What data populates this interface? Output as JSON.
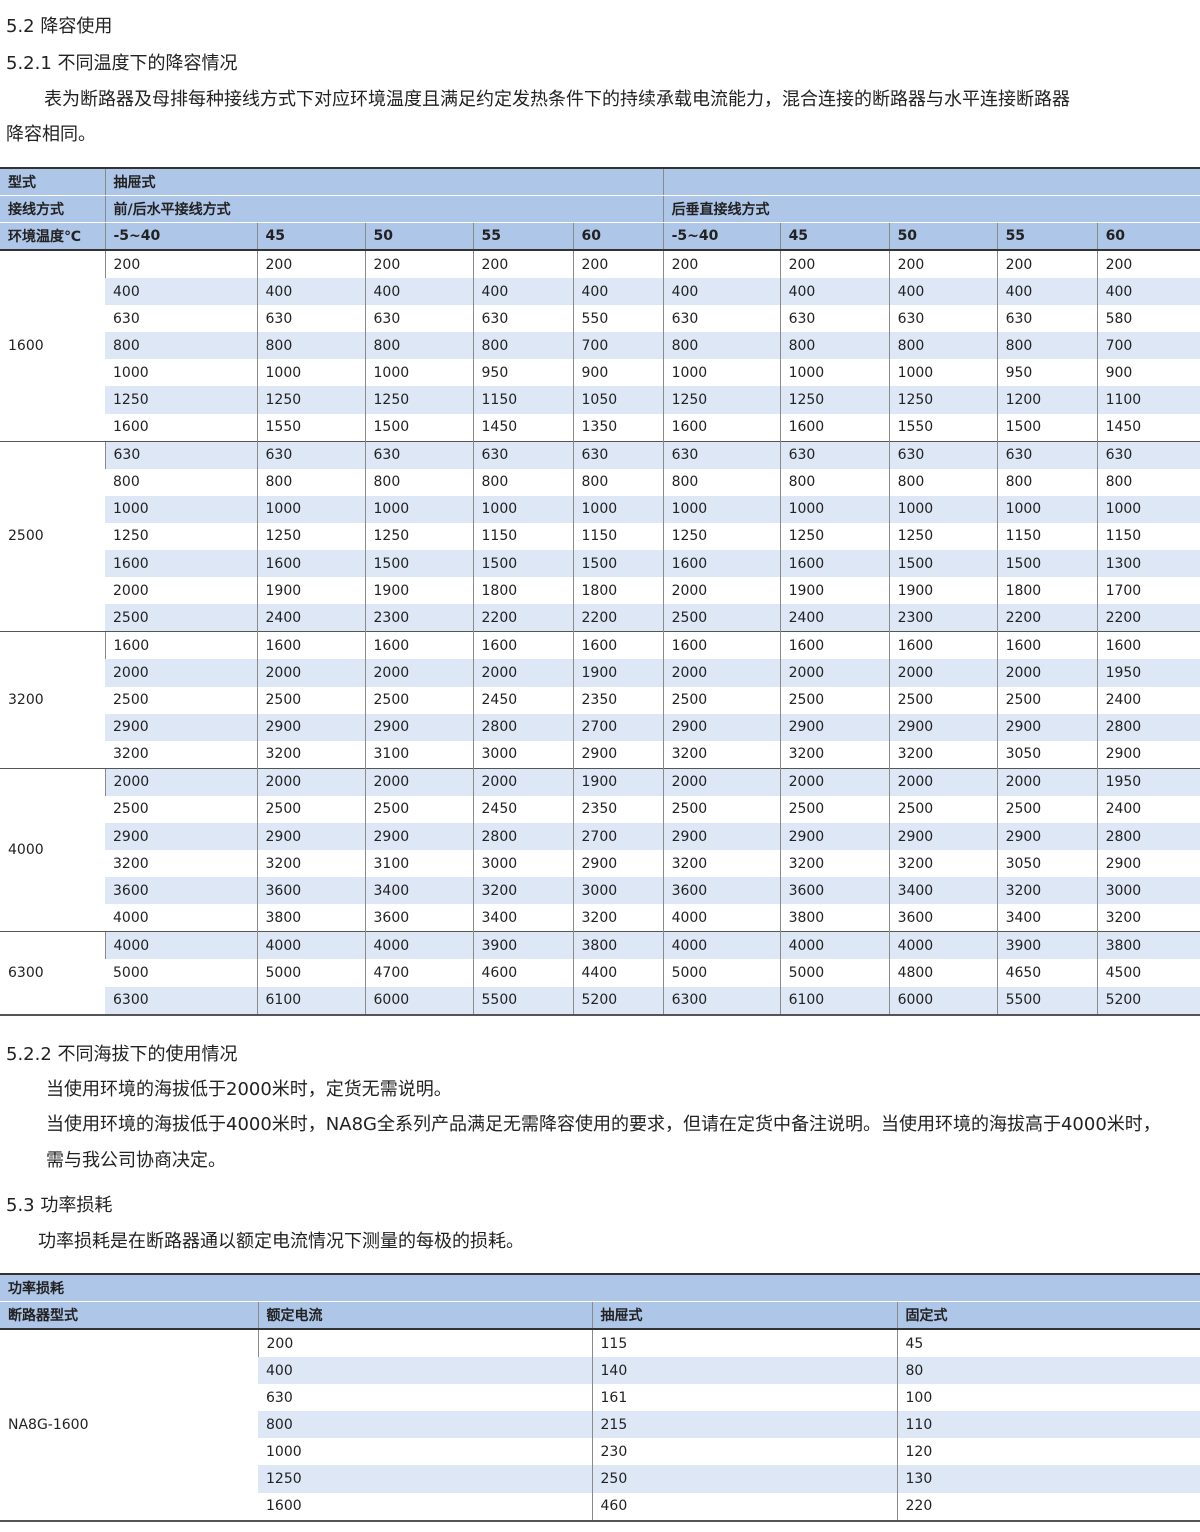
{
  "sec52": "5.2 降容使用",
  "sec521": "5.2.1 不同温度下的降容情况",
  "p521a": "表为断路器及母排每种接线方式下对应环境温度且满足约定发热条件下的持续承载电流能力，混合连接的断路器与水平连接断路器",
  "p521b": "降容相同。",
  "t1": {
    "h_type": "型式",
    "h_draw": "抽屉式",
    "h_wiring": "接线方式",
    "h_horiz": "前/后水平接线方式",
    "h_vert": "后垂直接线方式",
    "h_temp": "环境温度℃",
    "temps": [
      "-5~40",
      "45",
      "50",
      "55",
      "60",
      "-5~40",
      "45",
      "50",
      "55",
      "60"
    ],
    "groups": [
      {
        "frame": "1600",
        "rows": [
          [
            "200",
            "200",
            "200",
            "200",
            "200",
            "200",
            "200",
            "200",
            "200",
            "200"
          ],
          [
            "400",
            "400",
            "400",
            "400",
            "400",
            "400",
            "400",
            "400",
            "400",
            "400"
          ],
          [
            "630",
            "630",
            "630",
            "630",
            "550",
            "630",
            "630",
            "630",
            "630",
            "580"
          ],
          [
            "800",
            "800",
            "800",
            "800",
            "700",
            "800",
            "800",
            "800",
            "800",
            "700"
          ],
          [
            "1000",
            "1000",
            "1000",
            "950",
            "900",
            "1000",
            "1000",
            "1000",
            "950",
            "900"
          ],
          [
            "1250",
            "1250",
            "1250",
            "1150",
            "1050",
            "1250",
            "1250",
            "1250",
            "1200",
            "1100"
          ],
          [
            "1600",
            "1550",
            "1500",
            "1450",
            "1350",
            "1600",
            "1600",
            "1550",
            "1500",
            "1450"
          ]
        ]
      },
      {
        "frame": "2500",
        "rows": [
          [
            "630",
            "630",
            "630",
            "630",
            "630",
            "630",
            "630",
            "630",
            "630",
            "630"
          ],
          [
            "800",
            "800",
            "800",
            "800",
            "800",
            "800",
            "800",
            "800",
            "800",
            "800"
          ],
          [
            "1000",
            "1000",
            "1000",
            "1000",
            "1000",
            "1000",
            "1000",
            "1000",
            "1000",
            "1000"
          ],
          [
            "1250",
            "1250",
            "1250",
            "1150",
            "1150",
            "1250",
            "1250",
            "1250",
            "1150",
            "1150"
          ],
          [
            "1600",
            "1600",
            "1500",
            "1500",
            "1500",
            "1600",
            "1600",
            "1500",
            "1500",
            "1300"
          ],
          [
            "2000",
            "1900",
            "1900",
            "1800",
            "1800",
            "2000",
            "1900",
            "1900",
            "1800",
            "1700"
          ],
          [
            "2500",
            "2400",
            "2300",
            "2200",
            "2200",
            "2500",
            "2400",
            "2300",
            "2200",
            "2200"
          ]
        ]
      },
      {
        "frame": "3200",
        "rows": [
          [
            "1600",
            "1600",
            "1600",
            "1600",
            "1600",
            "1600",
            "1600",
            "1600",
            "1600",
            "1600"
          ],
          [
            "2000",
            "2000",
            "2000",
            "2000",
            "1900",
            "2000",
            "2000",
            "2000",
            "2000",
            "1950"
          ],
          [
            "2500",
            "2500",
            "2500",
            "2450",
            "2350",
            "2500",
            "2500",
            "2500",
            "2500",
            "2400"
          ],
          [
            "2900",
            "2900",
            "2900",
            "2800",
            "2700",
            "2900",
            "2900",
            "2900",
            "2900",
            "2800"
          ],
          [
            "3200",
            "3200",
            "3100",
            "3000",
            "2900",
            "3200",
            "3200",
            "3200",
            "3050",
            "2900"
          ]
        ]
      },
      {
        "frame": "4000",
        "rows": [
          [
            "2000",
            "2000",
            "2000",
            "2000",
            "1900",
            "2000",
            "2000",
            "2000",
            "2000",
            "1950"
          ],
          [
            "2500",
            "2500",
            "2500",
            "2450",
            "2350",
            "2500",
            "2500",
            "2500",
            "2500",
            "2400"
          ],
          [
            "2900",
            "2900",
            "2900",
            "2800",
            "2700",
            "2900",
            "2900",
            "2900",
            "2900",
            "2800"
          ],
          [
            "3200",
            "3200",
            "3100",
            "3000",
            "2900",
            "3200",
            "3200",
            "3200",
            "3050",
            "2900"
          ],
          [
            "3600",
            "3600",
            "3400",
            "3200",
            "3000",
            "3600",
            "3600",
            "3400",
            "3200",
            "3000"
          ],
          [
            "4000",
            "3800",
            "3600",
            "3400",
            "3200",
            "4000",
            "3800",
            "3600",
            "3400",
            "3200"
          ]
        ]
      },
      {
        "frame": "6300",
        "rows": [
          [
            "4000",
            "4000",
            "4000",
            "3900",
            "3800",
            "4000",
            "4000",
            "4000",
            "3900",
            "3800"
          ],
          [
            "5000",
            "5000",
            "4700",
            "4600",
            "4400",
            "5000",
            "5000",
            "4800",
            "4650",
            "4500"
          ],
          [
            "6300",
            "6100",
            "6000",
            "5500",
            "5200",
            "6300",
            "6100",
            "6000",
            "5500",
            "5200"
          ]
        ]
      }
    ]
  },
  "sec522": "5.2.2 不同海拔下的使用情况",
  "p522a": "当使用环境的海拔低于2000米时，定货无需说明。",
  "p522b": "当使用环境的海拔低于4000米时，NA8G全系列产品满足无需降容使用的要求，但请在定货中备注说明。当使用环境的海拔高于4000米时，",
  "p522c": "需与我公司协商决定。",
  "sec53": "5.3 功率损耗",
  "p53": "功率损耗是在断路器通以额定电流情况下测量的每极的损耗。",
  "t2": {
    "title": "功率损耗",
    "headers": [
      "断路器型式",
      "额定电流",
      "抽屉式",
      "固定式"
    ],
    "model": "NA8G-1600",
    "rows": [
      [
        "200",
        "115",
        "45"
      ],
      [
        "400",
        "140",
        "80"
      ],
      [
        "630",
        "161",
        "100"
      ],
      [
        "800",
        "215",
        "110"
      ],
      [
        "1000",
        "230",
        "120"
      ],
      [
        "1250",
        "250",
        "130"
      ],
      [
        "1600",
        "460",
        "220"
      ]
    ]
  },
  "colors": {
    "header": "#aec6e8",
    "stripe": "#dde7f6"
  }
}
